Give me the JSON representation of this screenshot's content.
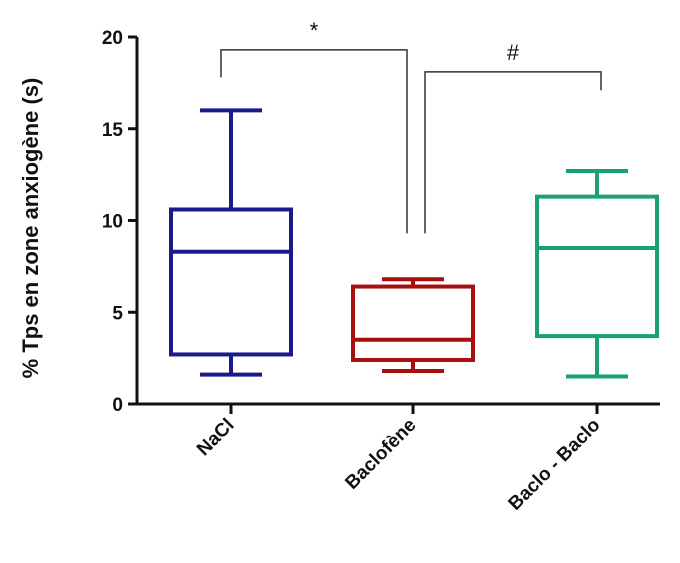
{
  "chart_data": {
    "type": "boxplot",
    "ylabel": "% Tps en zone anxiogène (s)",
    "ylim": [
      0,
      20
    ],
    "yticks": [
      0,
      5,
      10,
      15,
      20
    ],
    "categories": [
      "NaCl",
      "Baclofène",
      "Baclo - Baclo"
    ],
    "series": [
      {
        "category": "NaCl",
        "min": 1.6,
        "q1": 2.7,
        "median": 8.3,
        "q3": 10.6,
        "max": 16.0,
        "color": "#1a1a8c"
      },
      {
        "category": "Baclofène",
        "min": 1.8,
        "q1": 2.4,
        "median": 3.5,
        "q3": 6.4,
        "max": 6.8,
        "color": "#a80e0e"
      },
      {
        "category": "Baclo - Baclo",
        "min": 1.5,
        "q1": 3.7,
        "median": 8.5,
        "q3": 11.3,
        "max": 12.7,
        "color": "#1aa079"
      }
    ],
    "significance": [
      {
        "from": 0,
        "to": 1,
        "label": "*",
        "y": 19.3,
        "drop_from": 17.8,
        "drop_to": 9.3
      },
      {
        "from": 1,
        "to": 2,
        "label": "#",
        "y": 18.1,
        "drop_from": 9.3,
        "drop_to": 17.1
      }
    ],
    "grid": false,
    "legend": "none"
  }
}
